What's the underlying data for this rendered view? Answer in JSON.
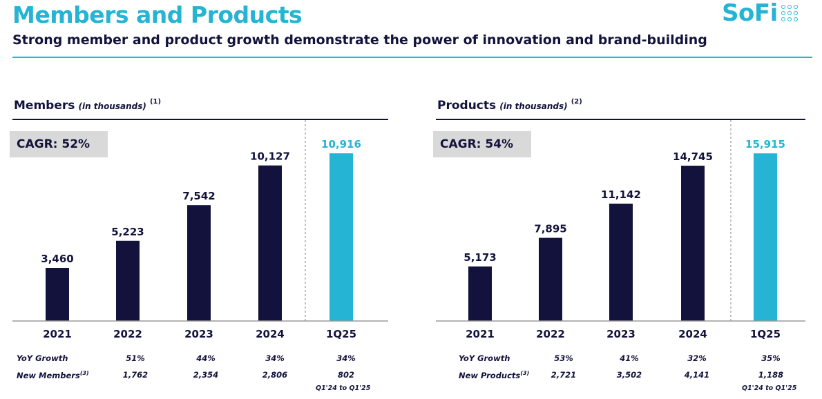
{
  "header": {
    "title": "Members and Products",
    "subtitle": "Strong member and product growth demonstrate the power of innovation and brand-building",
    "logo_text": "SoFi",
    "accent_color": "#25b4d4",
    "dark_color": "#12123c"
  },
  "chart_data": [
    {
      "type": "bar",
      "title": "Members",
      "title_note": "(in thousands)",
      "footnote_ref": "(1)",
      "cagr_label": "CAGR: 52%",
      "categories": [
        "2021",
        "2022",
        "2023",
        "2024",
        "1Q25"
      ],
      "values": [
        3460,
        5223,
        7542,
        10127,
        10916
      ],
      "value_labels": [
        "3,460",
        "5,223",
        "7,542",
        "10,127",
        "10,916"
      ],
      "highlight_index": 4,
      "bar_color": "#12123c",
      "highlight_color": "#25b4d4",
      "ylim": [
        0,
        12000
      ],
      "table": {
        "row1_label": "YoY Growth",
        "row1_values": [
          "",
          "51%",
          "44%",
          "34%",
          "34%"
        ],
        "row2_label": "New Members",
        "row2_note": "(3)",
        "row2_values": [
          "",
          "1,762",
          "2,354",
          "2,806",
          "802"
        ],
        "footnote": "Q1'24 to Q1'25"
      }
    },
    {
      "type": "bar",
      "title": "Products",
      "title_note": "(in thousands)",
      "footnote_ref": "(2)",
      "cagr_label": "CAGR: 54%",
      "categories": [
        "2021",
        "2022",
        "2023",
        "2024",
        "1Q25"
      ],
      "values": [
        5173,
        7895,
        11142,
        14745,
        15915
      ],
      "value_labels": [
        "5,173",
        "7,895",
        "11,142",
        "14,745",
        "15,915"
      ],
      "highlight_index": 4,
      "bar_color": "#12123c",
      "highlight_color": "#25b4d4",
      "ylim": [
        0,
        17500
      ],
      "table": {
        "row1_label": "YoY Growth",
        "row1_values": [
          "",
          "53%",
          "41%",
          "32%",
          "35%"
        ],
        "row2_label": "New Products",
        "row2_note": "(3)",
        "row2_values": [
          "",
          "2,721",
          "3,502",
          "4,141",
          "1,188"
        ],
        "footnote": "Q1'24 to Q1'25"
      }
    }
  ]
}
